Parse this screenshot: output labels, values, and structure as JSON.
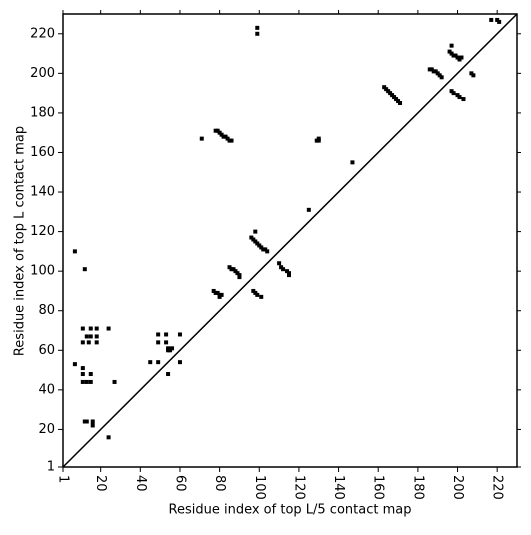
{
  "chart_data": {
    "type": "scatter",
    "xlabel": "Residue index of top L/5 contact map",
    "ylabel": "Residue index of top L contact map",
    "x": [
      99,
      99,
      7,
      12,
      78,
      79,
      80,
      81,
      82,
      83,
      84,
      85,
      86,
      71,
      125,
      129,
      130,
      130,
      147,
      197,
      196,
      197,
      198,
      199,
      200,
      201,
      202,
      186,
      187,
      188,
      189,
      190,
      191,
      192,
      207,
      208,
      197,
      198,
      200,
      201,
      203,
      163,
      164,
      165,
      166,
      167,
      168,
      169,
      170,
      171,
      217,
      220,
      221,
      98,
      96,
      97,
      98,
      99,
      100,
      101,
      102,
      103,
      104,
      110,
      111,
      112,
      114,
      115,
      115,
      85,
      86,
      87,
      88,
      89,
      90,
      90,
      77,
      78,
      79,
      80,
      81,
      80,
      97,
      98,
      99,
      101,
      11,
      15,
      18,
      24,
      13,
      15,
      18,
      11,
      14,
      18,
      49,
      49,
      53,
      53,
      60,
      54,
      55,
      54,
      56,
      45,
      49,
      60,
      54,
      7,
      11,
      11,
      11,
      13,
      15,
      15,
      27,
      12,
      13,
      16,
      16,
      24
    ],
    "values": [
      223,
      220,
      110,
      101,
      171,
      171,
      170,
      169,
      168,
      168,
      167,
      166,
      166,
      167,
      131,
      166,
      166,
      167,
      155,
      214,
      211,
      210,
      209,
      209,
      208,
      207,
      208,
      202,
      202,
      201,
      201,
      200,
      199,
      198,
      200,
      199,
      191,
      190,
      189,
      188,
      187,
      193,
      192,
      191,
      190,
      189,
      188,
      187,
      186,
      185,
      227,
      227,
      226,
      120,
      117,
      116,
      115,
      114,
      113,
      112,
      111,
      111,
      110,
      104,
      102,
      101,
      100,
      99,
      98,
      102,
      101,
      101,
      100,
      99,
      98,
      97,
      90,
      89,
      89,
      88,
      88,
      87,
      90,
      89,
      88,
      87,
      71,
      71,
      71,
      71,
      67,
      67,
      67,
      64,
      64,
      64,
      68,
      64,
      68,
      64,
      68,
      60,
      60,
      61,
      61,
      54,
      54,
      54,
      48,
      53,
      51,
      48,
      44,
      44,
      44,
      48,
      44,
      24,
      24,
      24,
      22,
      16
    ],
    "color": "#000000",
    "diagonal": true,
    "xlim": [
      1,
      230
    ],
    "ylim": [
      1,
      230
    ],
    "xticks": [
      1,
      20,
      40,
      60,
      80,
      100,
      120,
      140,
      160,
      180,
      200,
      220
    ],
    "yticks": [
      1,
      20,
      40,
      60,
      80,
      100,
      120,
      140,
      160,
      180,
      200,
      220
    ]
  }
}
